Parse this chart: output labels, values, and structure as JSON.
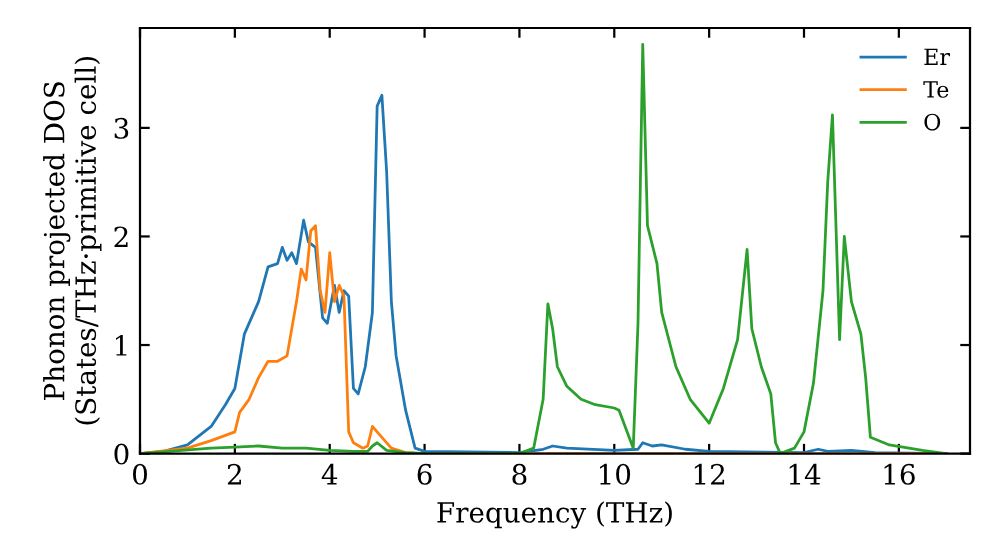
{
  "chart_data": {
    "type": "line",
    "xlabel": "Frequency (THz)",
    "ylabel": "Phonon projected DOS\n(States/THz·primitive cell)",
    "xlim": [
      0,
      17.5
    ],
    "ylim": [
      0,
      3.92
    ],
    "xticks": [
      0,
      2,
      4,
      6,
      8,
      10,
      12,
      14,
      16
    ],
    "yticks": [
      0,
      1,
      2,
      3
    ],
    "legend": "top right",
    "grid": false,
    "marker": "none",
    "line_style": "solid",
    "series": [
      {
        "name": "Er",
        "color": "#1f77b4",
        "x": [
          0,
          0.5,
          1,
          1.5,
          1.8,
          2.0,
          2.2,
          2.5,
          2.7,
          2.9,
          3.0,
          3.1,
          3.2,
          3.3,
          3.45,
          3.55,
          3.7,
          3.85,
          3.95,
          4.1,
          4.2,
          4.3,
          4.4,
          4.5,
          4.6,
          4.75,
          4.9,
          5.0,
          5.1,
          5.2,
          5.3,
          5.4,
          5.6,
          5.8,
          6.0,
          8.0,
          8.5,
          8.7,
          9.0,
          10.0,
          10.5,
          10.6,
          10.8,
          11.0,
          11.5,
          12.0,
          14.0,
          14.3,
          14.5,
          15.0,
          15.5,
          17.0
        ],
        "values": [
          0,
          0.02,
          0.08,
          0.25,
          0.45,
          0.6,
          1.1,
          1.4,
          1.72,
          1.75,
          1.9,
          1.78,
          1.85,
          1.75,
          2.15,
          1.95,
          1.9,
          1.25,
          1.2,
          1.55,
          1.3,
          1.5,
          1.45,
          0.6,
          0.55,
          0.8,
          1.3,
          3.2,
          3.3,
          2.6,
          1.4,
          0.9,
          0.4,
          0.05,
          0.02,
          0.01,
          0.04,
          0.07,
          0.05,
          0.03,
          0.04,
          0.1,
          0.07,
          0.08,
          0.04,
          0.02,
          0.01,
          0.04,
          0.02,
          0.03,
          0.01,
          0
        ]
      },
      {
        "name": "Te",
        "color": "#ff7f0e",
        "x": [
          0,
          1,
          1.5,
          2.0,
          2.1,
          2.3,
          2.5,
          2.7,
          2.9,
          3.1,
          3.3,
          3.4,
          3.5,
          3.6,
          3.7,
          3.8,
          3.9,
          4.0,
          4.1,
          4.2,
          4.3,
          4.4,
          4.5,
          4.7,
          4.8,
          4.9,
          5.1,
          5.3,
          5.6,
          6.0,
          17.0
        ],
        "values": [
          0,
          0.05,
          0.12,
          0.2,
          0.38,
          0.5,
          0.7,
          0.85,
          0.85,
          0.9,
          1.4,
          1.7,
          1.6,
          2.05,
          2.1,
          1.5,
          1.3,
          1.85,
          1.4,
          1.55,
          1.45,
          0.2,
          0.1,
          0.05,
          0.07,
          0.25,
          0.15,
          0.05,
          0.01,
          0,
          0
        ]
      },
      {
        "name": "O",
        "color": "#2ca02c",
        "x": [
          0,
          1.5,
          2,
          2.5,
          3,
          3.5,
          4,
          4.5,
          4.8,
          4.9,
          5.0,
          5.2,
          5.6,
          6,
          8.0,
          8.3,
          8.5,
          8.6,
          8.7,
          8.8,
          9.0,
          9.3,
          9.6,
          10.0,
          10.1,
          10.4,
          10.5,
          10.6,
          10.7,
          10.9,
          11.0,
          11.3,
          11.6,
          12.0,
          12.3,
          12.6,
          12.8,
          12.9,
          13.1,
          13.3,
          13.4,
          13.5,
          13.8,
          14.0,
          14.2,
          14.4,
          14.5,
          14.6,
          14.75,
          14.85,
          15.0,
          15.2,
          15.3,
          15.4,
          15.8,
          16.5,
          17.0
        ],
        "values": [
          0,
          0.05,
          0.06,
          0.07,
          0.05,
          0.05,
          0.03,
          0.02,
          0.02,
          0.07,
          0.1,
          0.03,
          0.01,
          0,
          0,
          0.05,
          0.5,
          1.38,
          1.15,
          0.8,
          0.62,
          0.5,
          0.45,
          0.42,
          0.4,
          0.05,
          1.2,
          3.77,
          2.1,
          1.75,
          1.3,
          0.8,
          0.5,
          0.28,
          0.6,
          1.05,
          1.88,
          1.15,
          0.8,
          0.55,
          0.1,
          0,
          0.05,
          0.2,
          0.65,
          1.5,
          2.5,
          3.12,
          1.05,
          2.0,
          1.4,
          1.1,
          0.7,
          0.15,
          0.08,
          0.03,
          0
        ]
      }
    ]
  }
}
